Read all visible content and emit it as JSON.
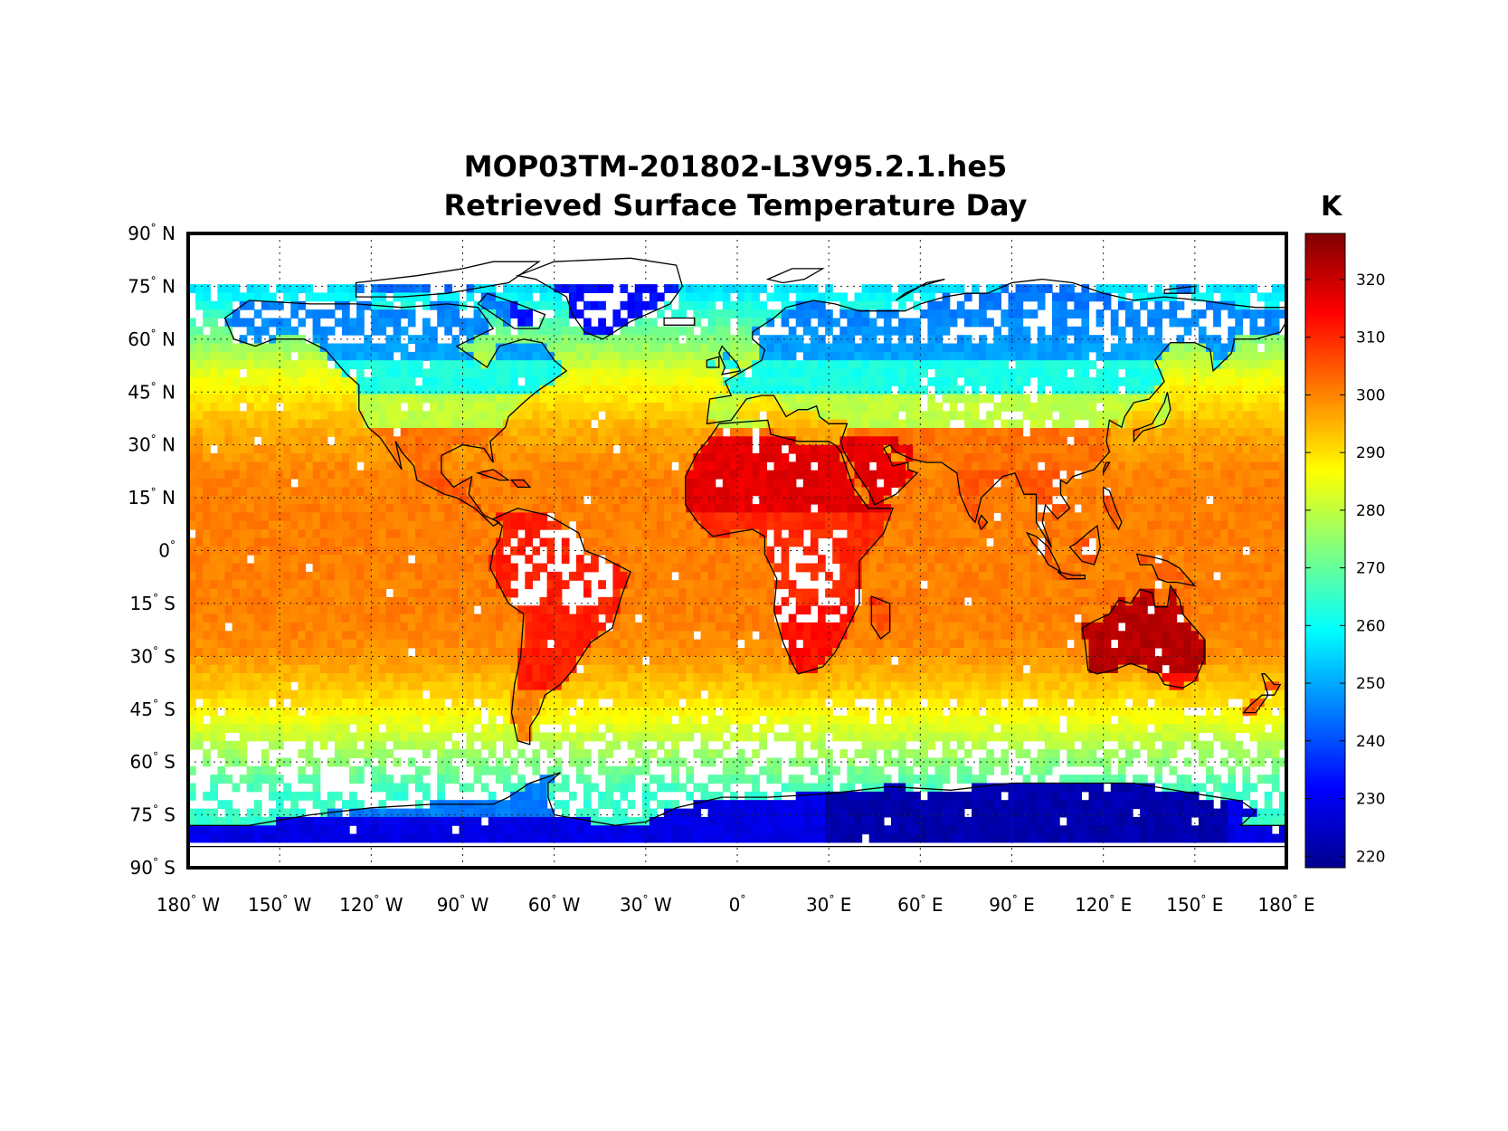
{
  "chart_data": {
    "type": "heatmap",
    "title": "MOP03TM-201802-L3V95.2.1.he5",
    "subtitle": "Retrieved Surface Temperature Day",
    "colorbar": {
      "unit": "K",
      "range": [
        218,
        328
      ],
      "ticks": [
        "220",
        "230",
        "240",
        "250",
        "260",
        "270",
        "280",
        "290",
        "300",
        "310",
        "320"
      ],
      "tick_values": [
        220,
        230,
        240,
        250,
        260,
        270,
        280,
        290,
        300,
        310,
        320
      ],
      "colormap": "jet"
    },
    "xaxis": {
      "range": [
        -180,
        180
      ],
      "ticks": [
        {
          "value": -180,
          "num": "180",
          "hem": "W"
        },
        {
          "value": -150,
          "num": "150",
          "hem": "W"
        },
        {
          "value": -120,
          "num": "120",
          "hem": "W"
        },
        {
          "value": -90,
          "num": "90",
          "hem": "W"
        },
        {
          "value": -60,
          "num": "60",
          "hem": "W"
        },
        {
          "value": -30,
          "num": "30",
          "hem": "W"
        },
        {
          "value": 0,
          "num": "0",
          "hem": ""
        },
        {
          "value": 30,
          "num": "30",
          "hem": "E"
        },
        {
          "value": 60,
          "num": "60",
          "hem": "E"
        },
        {
          "value": 90,
          "num": "90",
          "hem": "E"
        },
        {
          "value": 120,
          "num": "120",
          "hem": "E"
        },
        {
          "value": 150,
          "num": "150",
          "hem": "E"
        },
        {
          "value": 180,
          "num": "180",
          "hem": "E"
        }
      ]
    },
    "yaxis": {
      "range": [
        -90,
        90
      ],
      "ticks": [
        {
          "value": 90,
          "num": "90",
          "hem": "N"
        },
        {
          "value": 75,
          "num": "75",
          "hem": "N"
        },
        {
          "value": 60,
          "num": "60",
          "hem": "N"
        },
        {
          "value": 45,
          "num": "45",
          "hem": "N"
        },
        {
          "value": 30,
          "num": "30",
          "hem": "N"
        },
        {
          "value": 15,
          "num": "15",
          "hem": "N"
        },
        {
          "value": 0,
          "num": "0",
          "hem": ""
        },
        {
          "value": -15,
          "num": "15",
          "hem": "S"
        },
        {
          "value": -30,
          "num": "30",
          "hem": "S"
        },
        {
          "value": -45,
          "num": "45",
          "hem": "S"
        },
        {
          "value": -60,
          "num": "60",
          "hem": "S"
        },
        {
          "value": -75,
          "num": "75",
          "hem": "S"
        },
        {
          "value": -90,
          "num": "90",
          "hem": "S"
        }
      ]
    },
    "grid": true,
    "data_coverage_lat": [
      -83,
      76
    ],
    "regional_values_K": [
      {
        "region": "Tropical ocean",
        "value": 300
      },
      {
        "region": "Sahara / N. Africa",
        "value": 318
      },
      {
        "region": "Australia interior",
        "value": 323
      },
      {
        "region": "Antarctic interior",
        "value": 225
      },
      {
        "region": "Siberia",
        "value": 243
      },
      {
        "region": "Greenland",
        "value": 235
      },
      {
        "region": "Southern Ocean 55S",
        "value": 275
      },
      {
        "region": "Mid-latitude ocean 45N",
        "value": 287
      }
    ]
  }
}
